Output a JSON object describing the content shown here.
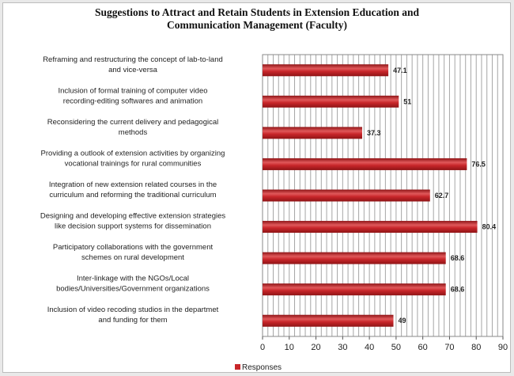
{
  "chart_data": {
    "type": "bar",
    "orientation": "horizontal",
    "title": "Suggestions to Attract and Retain Students in Extension Education and\nCommunication Management (Faculty)",
    "categories": [
      [
        "Reframing and restructuring the concept of lab-to-land",
        "and vice-versa"
      ],
      [
        "Inclusion of formal training of computer video",
        "recording-editing softwares and animation"
      ],
      [
        "Reconsidering the current delivery and pedagogical",
        "methods"
      ],
      [
        "Providing a outlook of extension activities by organizing",
        "vocational trainings for rural communities"
      ],
      [
        "Integration of new extension related courses in the",
        "curriculum and reforming the traditional curriculum"
      ],
      [
        "Designing and developing effective extension strategies",
        "like decision support systems for dissemination"
      ],
      [
        "Participatory collaborations with the government",
        "schemes on rural development"
      ],
      [
        "Inter-linkage with the NGOs/Local",
        "bodies/Universities/Government organizations"
      ],
      [
        "Inclusion of video recoding studios in the departmet",
        "and funding for them"
      ]
    ],
    "series": [
      {
        "name": "Responses",
        "values": [
          47.1,
          51,
          37.3,
          76.5,
          62.7,
          80.4,
          68.6,
          68.6,
          49
        ],
        "labels": [
          "47.1",
          "51",
          "37.3",
          "76.5",
          "62.7",
          "80.4",
          "68.6",
          "68.6",
          "49"
        ]
      }
    ],
    "xlim": [
      0,
      90
    ],
    "xticks": [
      0,
      10,
      20,
      30,
      40,
      50,
      60,
      70,
      80,
      90
    ],
    "grid": "vertical",
    "legend": "bottom",
    "colors": {
      "bar": "#c8262a",
      "bar_dark": "#8f1416",
      "bar_light": "#e0585a",
      "grid": "#a6a6a6"
    }
  }
}
